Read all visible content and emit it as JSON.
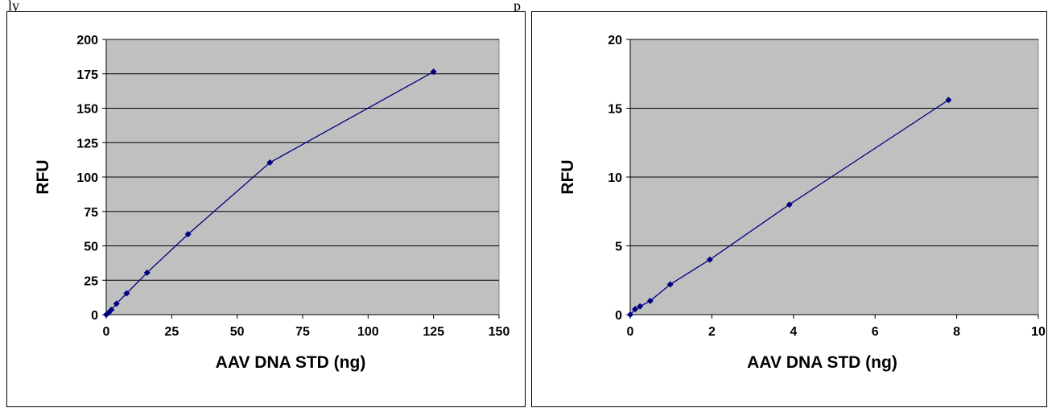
{
  "chart_data": [
    {
      "type": "line",
      "title": "",
      "xlabel": "AAV DNA STD (ng)",
      "ylabel": "RFU",
      "xlim": [
        0,
        150
      ],
      "ylim": [
        0,
        200
      ],
      "xticks": [
        "0",
        "25",
        "50",
        "75",
        "100",
        "125",
        "150"
      ],
      "yticks": [
        "0",
        "25",
        "50",
        "75",
        "100",
        "125",
        "150",
        "175",
        "200"
      ],
      "grid": true,
      "legend": "none",
      "plot_bg": "#c0c0c0",
      "line_color": "#000080",
      "series": [
        {
          "x": [
            0,
            0.98,
            1.95,
            3.9,
            7.8,
            15.6,
            31.25,
            62.5,
            125
          ],
          "y": [
            0,
            1.5,
            3.5,
            8,
            15.5,
            30.5,
            58.5,
            110.5,
            176.5
          ]
        }
      ]
    },
    {
      "type": "line",
      "title": "",
      "xlabel": "AAV DNA STD (ng)",
      "ylabel": "RFU",
      "xlim": [
        0,
        10
      ],
      "ylim": [
        0,
        20
      ],
      "xticks": [
        "0",
        "2",
        "4",
        "6",
        "8",
        "10"
      ],
      "yticks": [
        "0",
        "5",
        "10",
        "15",
        "20"
      ],
      "grid": true,
      "legend": "none",
      "plot_bg": "#c0c0c0",
      "line_color": "#000080",
      "series": [
        {
          "x": [
            0,
            0.12,
            0.24,
            0.49,
            0.98,
            1.95,
            3.9,
            7.8
          ],
          "y": [
            0,
            0.4,
            0.6,
            1.0,
            2.2,
            4.0,
            8.0,
            15.6
          ]
        }
      ]
    }
  ],
  "top_fragments": {
    "left": "ly",
    "right": "p"
  }
}
